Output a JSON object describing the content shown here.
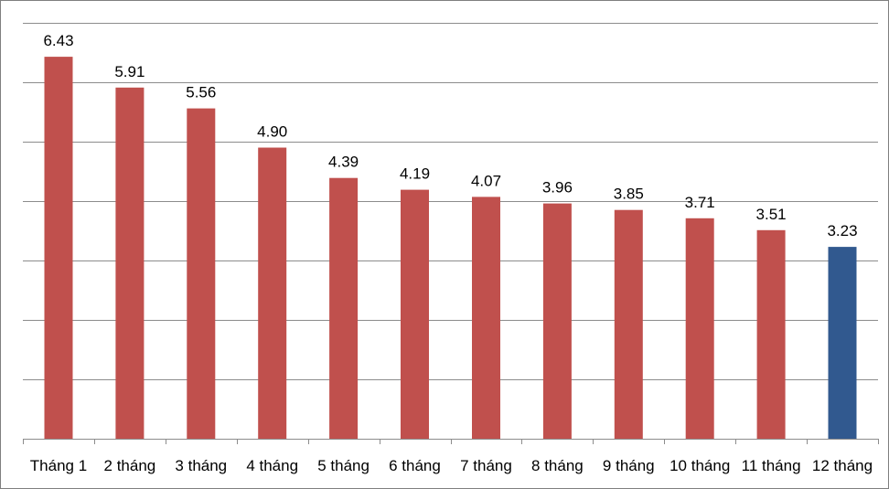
{
  "chart_data": {
    "type": "bar",
    "title": "",
    "xlabel": "",
    "ylabel": "",
    "categories": [
      "Tháng 1",
      "2 tháng",
      "3 tháng",
      "4 tháng",
      "5 tháng",
      "6 tháng",
      "7 tháng",
      "8 tháng",
      "9 tháng",
      "10 tháng",
      "11 tháng",
      "12 tháng"
    ],
    "values": [
      6.43,
      5.91,
      5.56,
      4.9,
      4.39,
      4.19,
      4.07,
      3.96,
      3.85,
      3.71,
      3.51,
      3.23
    ],
    "value_labels": [
      "6.43",
      "5.91",
      "5.56",
      "4.90",
      "4.39",
      "4.19",
      "4.07",
      "3.96",
      "3.85",
      "3.71",
      "3.51",
      "3.23"
    ],
    "ylim": [
      0,
      7
    ],
    "y_gridline_step": 1,
    "grid": true,
    "legend": "none",
    "colors": {
      "default_bar": "#c0504d",
      "highlight_bar": "#31598f",
      "highlight_index": 11
    }
  }
}
